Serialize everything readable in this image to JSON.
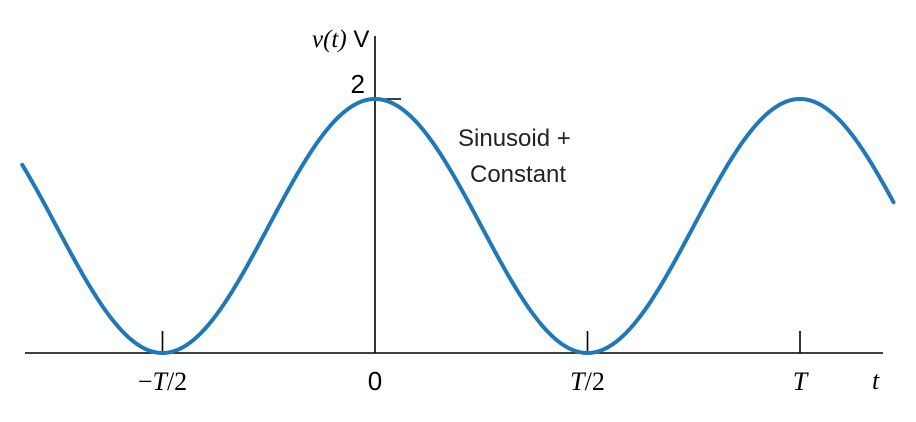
{
  "chart_data": {
    "type": "line",
    "title": "",
    "ylabel": "v(t) V",
    "xlabel": "t",
    "annotation": "Sinusoid + Constant",
    "annotation_lines": [
      "Sinusoid +",
      "Constant"
    ],
    "x_unit": "T",
    "xlim": [
      -0.83,
      1.22
    ],
    "ylim": [
      0,
      2
    ],
    "x_ticks": [
      {
        "value": -0.5,
        "label": "−T/2"
      },
      {
        "value": 0,
        "label": "0"
      },
      {
        "value": 0.5,
        "label": "T/2"
      },
      {
        "value": 1,
        "label": "T"
      }
    ],
    "y_ticks": [
      {
        "value": 2,
        "label": "2"
      }
    ],
    "series": [
      {
        "function": "1 + cos(2πt/T)",
        "x": [
          -0.83,
          -0.75,
          -0.625,
          -0.5,
          -0.375,
          -0.25,
          -0.125,
          0,
          0.125,
          0.25,
          0.375,
          0.5,
          0.625,
          0.75,
          0.875,
          1,
          1.125,
          1.22
        ],
        "values": [
          1.5,
          1.0,
          0.293,
          0,
          0.293,
          1.0,
          1.707,
          2,
          1.707,
          1.0,
          0.293,
          0,
          0.293,
          1.0,
          1.707,
          2,
          1.707,
          1.2
        ]
      }
    ],
    "grid": false,
    "legend": "none",
    "colors": {
      "curve": "#1f78b8",
      "axes": "#000000"
    }
  }
}
